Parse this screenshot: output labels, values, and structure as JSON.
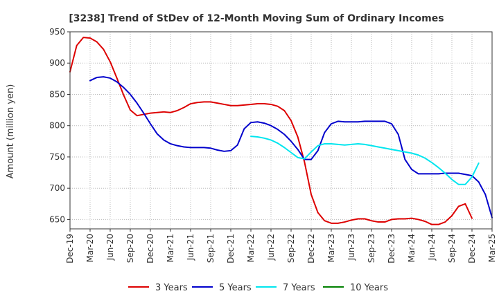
{
  "chart_data": {
    "type": "line",
    "title": "[3238]  Trend of StDev of 12-Month Moving Sum of Ordinary Incomes",
    "xlabel": "",
    "ylabel": "Amount (million yen)",
    "ylim": [
      635,
      950
    ],
    "yticks": [
      650,
      700,
      750,
      800,
      850,
      900,
      950
    ],
    "x_tick_labels": [
      "Dec-19",
      "Mar-20",
      "Jun-20",
      "Sep-20",
      "Dec-20",
      "Mar-21",
      "Jun-21",
      "Sep-21",
      "Dec-21",
      "Mar-22",
      "Jun-22",
      "Sep-22",
      "Dec-22",
      "Mar-23",
      "Jun-23",
      "Sep-23",
      "Dec-23",
      "Mar-24",
      "Jun-24",
      "Sep-24",
      "Dec-24",
      "Mar-25"
    ],
    "grid": true,
    "legend_position": "bottom",
    "series": [
      {
        "name": "3 Years",
        "color": "#dd0000",
        "start_month": "Dec-19",
        "values": [
          886,
          928,
          941,
          940,
          934,
          922,
          902,
          876,
          849,
          825,
          816,
          818,
          820,
          821,
          822,
          821,
          824,
          829,
          835,
          837,
          838,
          838,
          836,
          834,
          832,
          832,
          833,
          834,
          835,
          835,
          834,
          831,
          824,
          808,
          782,
          742,
          690,
          661,
          648,
          644,
          644,
          646,
          649,
          651,
          651,
          648,
          646,
          646,
          650,
          651,
          651,
          652,
          650,
          647,
          642,
          642,
          646,
          656,
          671,
          675,
          652
        ]
      },
      {
        "name": "5 Years",
        "color": "#0000cc",
        "start_month": "Mar-20",
        "values": [
          872,
          877,
          878,
          876,
          870,
          861,
          850,
          836,
          820,
          803,
          787,
          777,
          771,
          768,
          766,
          765,
          765,
          765,
          764,
          761,
          759,
          760,
          769,
          795,
          805,
          806,
          804,
          800,
          794,
          786,
          775,
          762,
          746,
          746,
          760,
          789,
          803,
          807,
          806,
          806,
          806,
          807,
          807,
          807,
          807,
          803,
          786,
          746,
          730,
          723,
          723,
          723,
          723,
          724,
          724,
          724,
          722,
          720,
          710,
          690,
          653
        ]
      },
      {
        "name": "7 Years",
        "color": "#00e5ee",
        "start_month": "Mar-22",
        "values": [
          783,
          782,
          780,
          777,
          772,
          765,
          757,
          749,
          747,
          758,
          768,
          771,
          771,
          770,
          769,
          770,
          771,
          770,
          768,
          766,
          764,
          762,
          760,
          758,
          756,
          753,
          748,
          741,
          733,
          724,
          714,
          706,
          706,
          718,
          740
        ]
      },
      {
        "name": "10 Years",
        "color": "#008000",
        "start_month": "",
        "values": []
      }
    ]
  }
}
